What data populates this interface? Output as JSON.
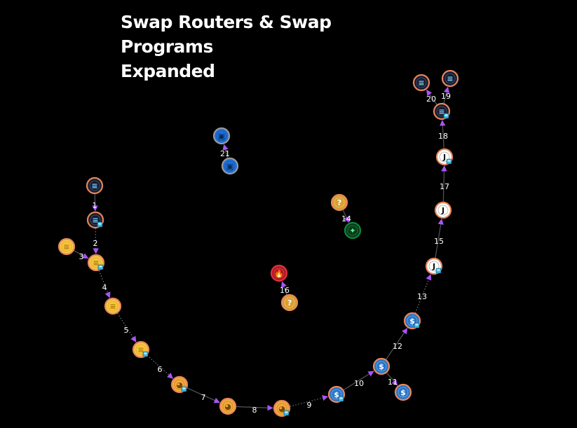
{
  "title": {
    "line1": "Swap Routers & Swap Programs",
    "line2": "Expanded"
  },
  "icon_types": {
    "sol": {
      "icon": "solana-token-icon",
      "ring": "#e8875a",
      "fill": "#1a1a2e",
      "glyph": "≡",
      "glyph_color": "#7ad8ff"
    },
    "yellow": {
      "icon": "yellow-coin-icon",
      "ring": "#e8875a",
      "fill": "#f5c542",
      "glyph": "≡",
      "glyph_color": "#b07a00"
    },
    "doge": {
      "icon": "doge-coin-icon",
      "ring": "#e8875a",
      "fill": "#f2a93b",
      "glyph": "◕",
      "glyph_color": "#7a4a00"
    },
    "usdc": {
      "icon": "usdc-coin-icon",
      "ring": "#e8875a",
      "fill": "#2775ca",
      "glyph": "$",
      "glyph_color": "#ffffff"
    },
    "jup": {
      "icon": "jupiter-j-token-icon",
      "ring": "#e8875a",
      "fill": "#ffffff",
      "glyph": "J",
      "glyph_color": "#111111"
    },
    "unknown": {
      "icon": "unknown-token-icon",
      "ring": "#e8875a",
      "fill": "#d9a030",
      "glyph": "?",
      "glyph_color": "#ffffff"
    },
    "fire": {
      "icon": "fire-program-icon",
      "ring": "#e03040",
      "fill": "#b01828",
      "glyph": "🔥",
      "glyph_color": "#ffb020"
    },
    "green": {
      "icon": "green-program-icon",
      "ring": "#0a8a3a",
      "fill": "#0a3a1a",
      "glyph": "✦",
      "glyph_color": "#4cff8a"
    },
    "blue": {
      "icon": "blue-program-icon",
      "ring": "#9a9a9a",
      "fill": "#1e6fd9",
      "glyph": "▣",
      "glyph_color": "#0a2a55"
    }
  },
  "nodes": [
    {
      "id": "n1a",
      "type": "sol"
    },
    {
      "id": "n1b",
      "type": "sol",
      "badge": true
    },
    {
      "id": "n3a",
      "type": "yellow"
    },
    {
      "id": "n2b",
      "type": "yellow",
      "badge": true
    },
    {
      "id": "n4b",
      "type": "yellow"
    },
    {
      "id": "n5b",
      "type": "yellow",
      "badge": true
    },
    {
      "id": "n6b",
      "type": "doge",
      "badge": true
    },
    {
      "id": "n7b",
      "type": "doge"
    },
    {
      "id": "n8b",
      "type": "doge",
      "badge": true
    },
    {
      "id": "n9b",
      "type": "usdc",
      "badge": true
    },
    {
      "id": "n10b",
      "type": "usdc"
    },
    {
      "id": "n11b",
      "type": "usdc"
    },
    {
      "id": "n12b",
      "type": "usdc",
      "badge": true
    },
    {
      "id": "n13b",
      "type": "jup",
      "badge": true
    },
    {
      "id": "n15b",
      "type": "jup"
    },
    {
      "id": "n17b",
      "type": "jup",
      "badge": true
    },
    {
      "id": "n18b",
      "type": "sol",
      "badge": true
    },
    {
      "id": "n20a",
      "type": "sol"
    },
    {
      "id": "n19a",
      "type": "sol"
    },
    {
      "id": "n14a",
      "type": "unknown"
    },
    {
      "id": "n14b",
      "type": "green"
    },
    {
      "id": "n16a",
      "type": "fire"
    },
    {
      "id": "n16b",
      "type": "unknown"
    },
    {
      "id": "n21a",
      "type": "blue"
    },
    {
      "id": "n21b",
      "type": "blue"
    }
  ],
  "edges": [
    {
      "from": "n1a",
      "to": "n1b",
      "label": "1",
      "style": "solid"
    },
    {
      "from": "n1b",
      "to": "n2b",
      "label": "2",
      "style": "dotted"
    },
    {
      "from": "n3a",
      "to": "n2b",
      "label": "3",
      "style": "solid"
    },
    {
      "from": "n2b",
      "to": "n4b",
      "label": "4",
      "style": "dotted"
    },
    {
      "from": "n4b",
      "to": "n5b",
      "label": "5",
      "style": "dotted"
    },
    {
      "from": "n5b",
      "to": "n6b",
      "label": "6",
      "style": "dotted"
    },
    {
      "from": "n6b",
      "to": "n7b",
      "label": "7",
      "style": "solid"
    },
    {
      "from": "n7b",
      "to": "n8b",
      "label": "8",
      "style": "solid"
    },
    {
      "from": "n8b",
      "to": "n9b",
      "label": "9",
      "style": "dotted"
    },
    {
      "from": "n9b",
      "to": "n10b",
      "label": "10",
      "style": "solid"
    },
    {
      "from": "n10b",
      "to": "n11b",
      "label": "11",
      "style": "solid"
    },
    {
      "from": "n10b",
      "to": "n12b",
      "label": "12",
      "style": "solid"
    },
    {
      "from": "n12b",
      "to": "n13b",
      "label": "13",
      "style": "dotted"
    },
    {
      "from": "n14a",
      "to": "n14b",
      "label": "14",
      "style": "solid"
    },
    {
      "from": "n13b",
      "to": "n15b",
      "label": "15",
      "style": "solid"
    },
    {
      "from": "n16b",
      "to": "n16a",
      "label": "16",
      "style": "solid"
    },
    {
      "from": "n15b",
      "to": "n17b",
      "label": "17",
      "style": "solid"
    },
    {
      "from": "n17b",
      "to": "n18b",
      "label": "18",
      "style": "solid"
    },
    {
      "from": "n18b",
      "to": "n19a",
      "label": "19",
      "style": "solid"
    },
    {
      "from": "n18b",
      "to": "n20a",
      "label": "20",
      "style": "solid"
    },
    {
      "from": "n21b",
      "to": "n21a",
      "label": "21",
      "style": "solid"
    }
  ]
}
